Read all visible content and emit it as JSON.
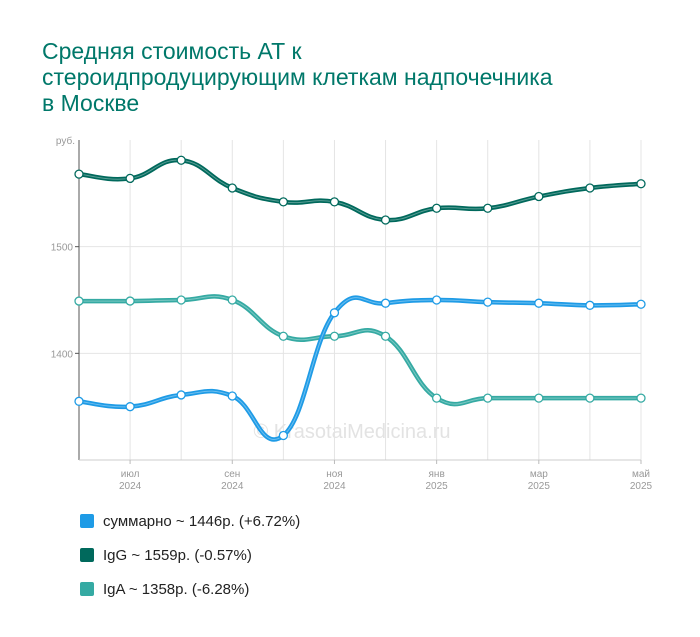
{
  "title_lines": [
    "Средняя стоимость АТ к",
    "стероидпродуцирующим клеткам надпочечника",
    "в Москве"
  ],
  "watermark": "© KrasotaiMedicina.ru",
  "chart_data": {
    "type": "line",
    "title": "Средняя стоимость АТ к стероидпродуцирующим клеткам надпочечника в Москве",
    "ylabel": "руб.",
    "ylim": [
      1300,
      1600
    ],
    "yticks": [
      1400,
      1500
    ],
    "x": [
      "2024-06",
      "2024-07",
      "2024-08",
      "2024-09",
      "2024-10",
      "2024-11",
      "2024-12",
      "2025-01",
      "2025-02",
      "2025-03",
      "2025-04",
      "2025-05"
    ],
    "xtick_labels": [
      {
        "month": "июл",
        "year": "2024",
        "index": 1
      },
      {
        "month": "сен",
        "year": "2024",
        "index": 3
      },
      {
        "month": "ноя",
        "year": "2024",
        "index": 5
      },
      {
        "month": "янв",
        "year": "2025",
        "index": 7
      },
      {
        "month": "мар",
        "year": "2025",
        "index": 9
      },
      {
        "month": "май",
        "year": "2025",
        "index": 11
      }
    ],
    "grid": true,
    "legend_position": "bottom",
    "series": [
      {
        "name": "суммарно",
        "legend": "суммарно ~ 1446р. (+6.72%)",
        "color": "#1e9be6",
        "values": [
          1355,
          1350,
          1361,
          1360,
          1323,
          1438,
          1447,
          1450,
          1448,
          1447,
          1445,
          1446
        ]
      },
      {
        "name": "IgG",
        "legend": "IgG ~ 1559р. (-0.57%)",
        "color": "#00695c",
        "values": [
          1568,
          1564,
          1581,
          1555,
          1542,
          1542,
          1525,
          1536,
          1536,
          1547,
          1555,
          1559
        ]
      },
      {
        "name": "IgA",
        "legend": "IgA ~ 1358р. (-6.28%)",
        "color": "#35aaa3",
        "values": [
          1449,
          1449,
          1450,
          1450,
          1416,
          1416,
          1416,
          1358,
          1358,
          1358,
          1358,
          1358
        ]
      }
    ]
  }
}
